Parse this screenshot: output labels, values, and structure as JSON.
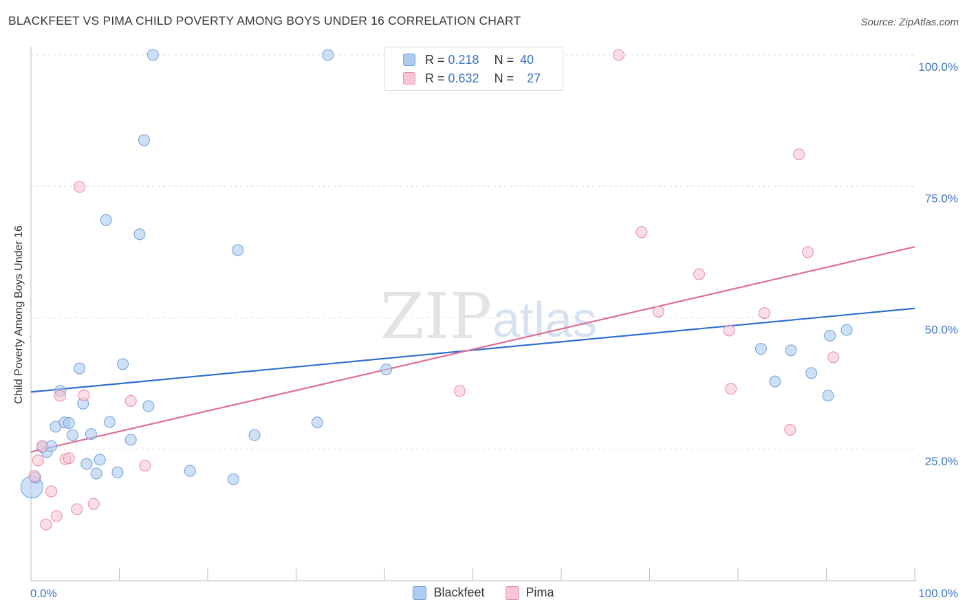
{
  "title": "BLACKFEET VS PIMA CHILD POVERTY AMONG BOYS UNDER 16 CORRELATION CHART",
  "source": "Source: ZipAtlas.com",
  "watermark": {
    "zip": "ZIP",
    "atlas": "atlas"
  },
  "legend": {
    "rows": [
      {
        "r_label": "R = ",
        "r_value": "0.218",
        "n_label": "N = ",
        "n_value": "40",
        "color": "#aecbf0",
        "border": "#6f9fd8"
      },
      {
        "r_label": "R = ",
        "r_value": "0.632",
        "n_label": "N = ",
        "n_value": "27",
        "color": "#f8c6d4",
        "border": "#e58aa5"
      }
    ]
  },
  "bottom_legend": [
    "Blackfeet",
    "Pima"
  ],
  "chart_data": {
    "type": "scatter",
    "title": "BLACKFEET VS PIMA CHILD POVERTY AMONG BOYS UNDER 16 CORRELATION CHART",
    "xlabel": "",
    "ylabel": "Child Poverty Among Boys Under 16",
    "xlim": [
      0,
      100
    ],
    "ylim": [
      0,
      100
    ],
    "x_tick_labels": [
      "0.0%",
      "100.0%"
    ],
    "y_ticks": [
      25,
      50,
      75,
      100
    ],
    "y_tick_labels": [
      "25.0%",
      "50.0%",
      "75.0%",
      "100.0%"
    ],
    "grid": true,
    "legend_position": "top-center",
    "series": [
      {
        "name": "Blackfeet",
        "color": "#aecbf0",
        "edge": "#6f9fd8",
        "line_color": "#2f6fd0",
        "trend": {
          "x": [
            0,
            100
          ],
          "y": [
            35.9,
            51.8
          ]
        },
        "points": [
          [
            0.1,
            17.8
          ],
          [
            0.5,
            19.6
          ],
          [
            1.3,
            25.4
          ],
          [
            1.8,
            24.5
          ],
          [
            2.3,
            25.6
          ],
          [
            2.8,
            29.3
          ],
          [
            3.3,
            36.1
          ],
          [
            3.8,
            30.1
          ],
          [
            4.3,
            30.0
          ],
          [
            4.7,
            27.7
          ],
          [
            5.5,
            40.4
          ],
          [
            5.9,
            33.7
          ],
          [
            6.3,
            22.2
          ],
          [
            6.8,
            27.9
          ],
          [
            7.4,
            20.4
          ],
          [
            7.8,
            23.0
          ],
          [
            8.5,
            68.6
          ],
          [
            8.9,
            30.2
          ],
          [
            9.8,
            20.6
          ],
          [
            10.4,
            41.2
          ],
          [
            11.3,
            26.8
          ],
          [
            12.3,
            65.9
          ],
          [
            12.8,
            83.8
          ],
          [
            13.3,
            33.2
          ],
          [
            13.8,
            100.0
          ],
          [
            18.0,
            20.9
          ],
          [
            22.9,
            19.3
          ],
          [
            23.4,
            62.9
          ],
          [
            25.3,
            27.7
          ],
          [
            32.4,
            30.1
          ],
          [
            33.6,
            100.0
          ],
          [
            40.2,
            40.2
          ],
          [
            46.8,
            100.0
          ],
          [
            82.6,
            44.1
          ],
          [
            84.2,
            37.9
          ],
          [
            86.0,
            43.8
          ],
          [
            88.3,
            39.5
          ],
          [
            90.2,
            35.2
          ],
          [
            90.4,
            46.6
          ],
          [
            92.3,
            47.7
          ]
        ]
      },
      {
        "name": "Pima",
        "color": "#f8c6d4",
        "edge": "#e58aa5",
        "line_color": "#e06c95",
        "trend": {
          "x": [
            0,
            100
          ],
          "y": [
            24.5,
            63.5
          ]
        },
        "points": [
          [
            0.4,
            19.9
          ],
          [
            0.8,
            22.9
          ],
          [
            1.3,
            25.6
          ],
          [
            1.7,
            10.7
          ],
          [
            2.3,
            17.0
          ],
          [
            2.9,
            12.3
          ],
          [
            3.3,
            35.2
          ],
          [
            3.9,
            23.1
          ],
          [
            4.3,
            23.3
          ],
          [
            5.2,
            13.6
          ],
          [
            5.5,
            74.9
          ],
          [
            6.0,
            35.3
          ],
          [
            7.1,
            14.6
          ],
          [
            11.3,
            34.2
          ],
          [
            12.9,
            21.9
          ],
          [
            48.5,
            36.1
          ],
          [
            66.5,
            100.0
          ],
          [
            69.1,
            66.3
          ],
          [
            71.0,
            51.2
          ],
          [
            75.6,
            58.3
          ],
          [
            79.0,
            47.6
          ],
          [
            79.2,
            36.5
          ],
          [
            83.0,
            50.9
          ],
          [
            85.9,
            28.7
          ],
          [
            86.9,
            81.1
          ],
          [
            87.9,
            62.5
          ],
          [
            90.8,
            42.5
          ]
        ]
      }
    ]
  }
}
